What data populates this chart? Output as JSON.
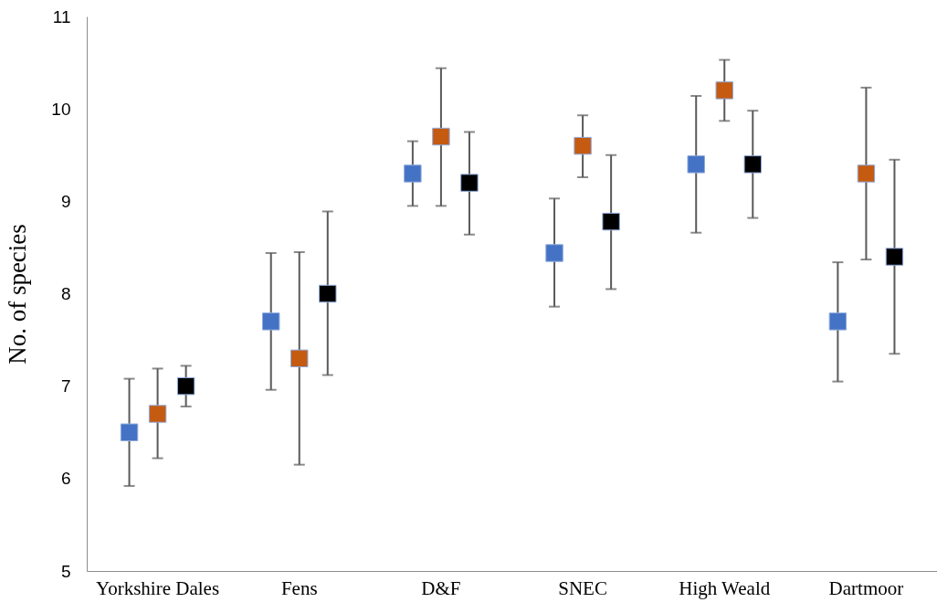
{
  "chart_data": {
    "type": "scatter",
    "ylabel": "No. of species",
    "categories": [
      "Yorkshire Dales",
      "Fens",
      "D&F",
      "SNEC",
      "High Weald",
      "Dartmoor"
    ],
    "series": [
      {
        "color": "#4472c4",
        "values": [
          6.5,
          7.7,
          9.3,
          8.44,
          9.4,
          7.7
        ],
        "errors": [
          [
            5.92,
            7.08
          ],
          [
            6.96,
            8.44
          ],
          [
            8.95,
            9.65
          ],
          [
            7.86,
            9.03
          ],
          [
            8.66,
            10.14
          ],
          [
            7.05,
            8.34
          ]
        ]
      },
      {
        "color": "#c55a11",
        "values": [
          6.7,
          7.3,
          9.7,
          9.6,
          10.2,
          9.3
        ],
        "errors": [
          [
            6.22,
            7.19
          ],
          [
            6.15,
            8.45
          ],
          [
            8.95,
            10.44
          ],
          [
            9.26,
            9.93
          ],
          [
            9.87,
            10.53
          ],
          [
            8.37,
            10.23
          ]
        ]
      },
      {
        "color": "#000000",
        "values": [
          7.0,
          8.0,
          9.2,
          8.78,
          9.4,
          8.4
        ],
        "errors": [
          [
            6.78,
            7.22
          ],
          [
            7.12,
            8.89
          ],
          [
            8.64,
            9.75
          ],
          [
            8.05,
            9.5
          ],
          [
            8.82,
            9.98
          ],
          [
            7.35,
            9.45
          ]
        ]
      }
    ],
    "ylim": [
      5,
      11
    ],
    "yticks": [
      5,
      6,
      7,
      8,
      9,
      10,
      11
    ],
    "grid": false,
    "marker": "square"
  }
}
